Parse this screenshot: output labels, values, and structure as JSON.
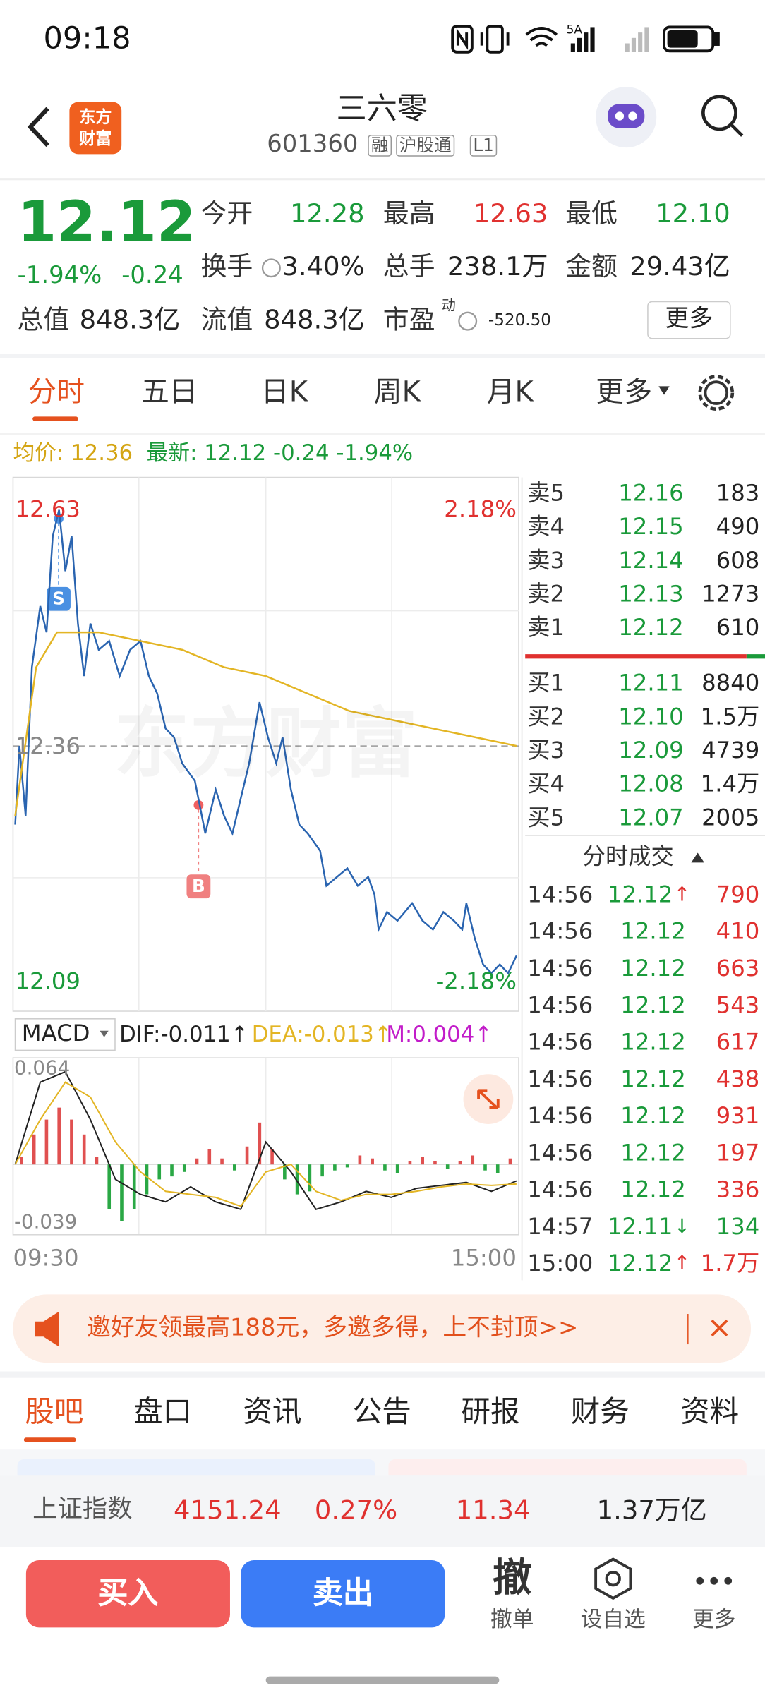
{
  "status_bar": {
    "time": "09:18",
    "network": "5A"
  },
  "header": {
    "logo": [
      "东方",
      "财富"
    ],
    "title": "三六零",
    "code": "601360",
    "tags": [
      "融",
      "沪股通",
      "L1"
    ]
  },
  "quote": {
    "price": "12.12",
    "change_pct": "-1.94%",
    "change": "-0.24",
    "fields": [
      {
        "label": "今开",
        "value": "12.28",
        "color": "#1a9a3a"
      },
      {
        "label": "最高",
        "value": "12.63",
        "color": "#e0312f"
      },
      {
        "label": "最低",
        "value": "12.10",
        "color": "#1a9a3a"
      },
      {
        "label": "换手",
        "value": "3.40%",
        "color": "#222222"
      },
      {
        "label": "总手",
        "value": "238.1万",
        "color": "#222222"
      },
      {
        "label": "金额",
        "value": "29.43亿",
        "color": "#222222"
      },
      {
        "label": "总值",
        "value": "848.3亿",
        "color": "#222222"
      },
      {
        "label": "流值",
        "value": "848.3亿",
        "color": "#222222"
      },
      {
        "label": "市盈",
        "note": "动",
        "value": "-520.50",
        "color": "#222222"
      }
    ],
    "more": "更多"
  },
  "period_tabs": [
    "分时",
    "五日",
    "日K",
    "周K",
    "月K",
    "更多"
  ],
  "info_line": {
    "avg": "均价: 12.36",
    "latest": "最新: 12.12 -0.24 -1.94%"
  },
  "watermark": "东方财富",
  "markers": {
    "sell": "S",
    "buy": "B"
  },
  "chart_data": [
    {
      "type": "line",
      "xlim": [
        0,
        240
      ],
      "xticks": [
        {
          "value": 0,
          "label": "09:30"
        },
        {
          "value": 240,
          "label": "15:00"
        }
      ],
      "ylim": [
        12.09,
        12.63
      ],
      "yticks": [
        12.09,
        12.36,
        12.63
      ],
      "y2lim": [
        -2.18,
        2.18
      ],
      "y2ticks": [
        {
          "value": -2.18,
          "label": "-2.18%"
        },
        {
          "value": 2.18,
          "label": "2.18%"
        }
      ],
      "series": [
        {
          "color": "#2a64b0",
          "x": [
            0,
            2,
            5,
            8,
            12,
            15,
            18,
            21,
            24,
            27,
            30,
            33,
            36,
            40,
            45,
            50,
            55,
            60,
            64,
            68,
            72,
            76,
            80,
            86,
            91,
            96,
            100,
            104,
            108,
            112,
            117,
            121,
            125,
            128,
            132,
            136,
            140,
            143,
            146,
            149,
            154,
            159,
            164,
            169,
            172,
            174,
            178,
            183,
            190,
            195,
            200,
            205,
            210,
            214,
            216,
            220,
            224,
            228,
            232,
            236,
            240
          ],
          "values": [
            12.27,
            12.36,
            12.28,
            12.45,
            12.52,
            12.49,
            12.6,
            12.63,
            12.56,
            12.6,
            12.5,
            12.44,
            12.5,
            12.47,
            12.48,
            12.44,
            12.47,
            12.48,
            12.44,
            12.42,
            12.38,
            12.37,
            12.34,
            12.32,
            12.26,
            12.31,
            12.28,
            12.26,
            12.3,
            12.34,
            12.41,
            12.37,
            12.34,
            12.37,
            12.31,
            12.27,
            12.26,
            12.25,
            12.24,
            12.2,
            12.21,
            12.22,
            12.2,
            12.21,
            12.19,
            12.15,
            12.17,
            12.16,
            12.18,
            12.16,
            12.15,
            12.17,
            12.16,
            12.15,
            12.18,
            12.14,
            12.11,
            12.1,
            12.11,
            12.1,
            12.12
          ]
        },
        {
          "color": "#e3b524",
          "x": [
            0,
            10,
            20,
            40,
            60,
            80,
            100,
            120,
            140,
            160,
            180,
            200,
            220,
            240
          ],
          "values": [
            12.28,
            12.45,
            12.49,
            12.49,
            12.48,
            12.47,
            12.45,
            12.44,
            12.42,
            12.4,
            12.39,
            12.38,
            12.37,
            12.36
          ]
        }
      ]
    },
    {
      "type": "macd",
      "xlim": [
        0,
        240
      ],
      "ylim": [
        -0.039,
        0.064
      ],
      "yticks": [
        -0.039,
        0.064
      ],
      "series": [
        {
          "name": "DIF:-0.011↑",
          "color": "#222222",
          "x": [
            0,
            12,
            24,
            36,
            48,
            60,
            72,
            84,
            96,
            108,
            120,
            132,
            144,
            156,
            168,
            180,
            192,
            204,
            216,
            228,
            240
          ],
          "values": [
            0,
            0.055,
            0.062,
            0.03,
            -0.01,
            -0.02,
            -0.025,
            -0.015,
            -0.025,
            -0.03,
            0.015,
            -0.005,
            -0.03,
            -0.025,
            -0.018,
            -0.022,
            -0.016,
            -0.014,
            -0.012,
            -0.018,
            -0.011
          ]
        },
        {
          "name": "DEA:-0.013↑",
          "color": "#e3b524",
          "x": [
            0,
            12,
            24,
            36,
            48,
            60,
            72,
            84,
            96,
            108,
            120,
            132,
            144,
            156,
            168,
            180,
            192,
            204,
            216,
            228,
            240
          ],
          "values": [
            0,
            0.03,
            0.055,
            0.045,
            0.015,
            -0.005,
            -0.018,
            -0.02,
            -0.022,
            -0.028,
            -0.005,
            0,
            -0.018,
            -0.024,
            -0.02,
            -0.02,
            -0.018,
            -0.015,
            -0.013,
            -0.014,
            -0.013
          ]
        },
        {
          "name": "M:0.004↑",
          "color": "#c21cc9",
          "x": [
            3,
            9,
            15,
            21,
            27,
            33,
            39,
            45,
            51,
            57,
            63,
            69,
            75,
            81,
            87,
            93,
            99,
            105,
            111,
            117,
            123,
            129,
            135,
            141,
            147,
            153,
            159,
            165,
            171,
            177,
            183,
            189,
            195,
            201,
            207,
            213,
            219,
            225,
            231,
            237
          ],
          "values": [
            0.005,
            0.02,
            0.03,
            0.038,
            0.03,
            0.02,
            0.005,
            -0.03,
            -0.038,
            -0.03,
            -0.02,
            -0.01,
            -0.008,
            -0.005,
            0.004,
            0.01,
            0.004,
            -0.004,
            0.012,
            0.028,
            0.01,
            -0.01,
            -0.02,
            -0.018,
            -0.008,
            -0.004,
            -0.002,
            0.006,
            0.004,
            -0.004,
            -0.006,
            0.002,
            0.005,
            0.002,
            -0.003,
            0.002,
            0.006,
            -0.004,
            -0.006,
            0.004
          ]
        }
      ]
    }
  ],
  "indicator": "MACD",
  "order_book": {
    "asks": [
      {
        "label": "卖5",
        "price": "12.16",
        "volume": "183"
      },
      {
        "label": "卖4",
        "price": "12.15",
        "volume": "490"
      },
      {
        "label": "卖3",
        "price": "12.14",
        "volume": "608"
      },
      {
        "label": "卖2",
        "price": "12.13",
        "volume": "1273"
      },
      {
        "label": "卖1",
        "price": "12.12",
        "volume": "610"
      }
    ],
    "bids": [
      {
        "label": "买1",
        "price": "12.11",
        "volume": "8840"
      },
      {
        "label": "买2",
        "price": "12.10",
        "volume": "1.5万"
      },
      {
        "label": "买3",
        "price": "12.09",
        "volume": "4739"
      },
      {
        "label": "买4",
        "price": "12.08",
        "volume": "1.4万"
      },
      {
        "label": "买5",
        "price": "12.07",
        "volume": "2005"
      }
    ]
  },
  "trades": {
    "title": "分时成交",
    "rows": [
      {
        "time": "14:56",
        "price": "12.12",
        "arrow": "↑",
        "volume": "790"
      },
      {
        "time": "14:56",
        "price": "12.12",
        "volume": "410"
      },
      {
        "time": "14:56",
        "price": "12.12",
        "volume": "663"
      },
      {
        "time": "14:56",
        "price": "12.12",
        "volume": "543"
      },
      {
        "time": "14:56",
        "price": "12.12",
        "volume": "617"
      },
      {
        "time": "14:56",
        "price": "12.12",
        "volume": "438"
      },
      {
        "time": "14:56",
        "price": "12.12",
        "volume": "931"
      },
      {
        "time": "14:56",
        "price": "12.12",
        "volume": "197"
      },
      {
        "time": "14:56",
        "price": "12.12",
        "volume": "336"
      },
      {
        "time": "14:57",
        "price": "12.11",
        "arrow": "↓",
        "volume": "134"
      },
      {
        "time": "15:00",
        "price": "12.12",
        "arrow": "↑",
        "volume": "1.7万"
      }
    ]
  },
  "banner": "邀好友领最高188元，多邀多得，上不封顶>>",
  "content_tabs": [
    "股吧",
    "盘口",
    "资讯",
    "公告",
    "研报",
    "财务",
    "资料"
  ],
  "index_bar": {
    "name": "上证指数",
    "value": "4151.24",
    "change_pct": "0.27%",
    "change": "11.34",
    "turnover": "1.37万亿"
  },
  "actions": {
    "buy": "买入",
    "sell": "卖出",
    "cancel_icon": "撤",
    "cancel": "撤单",
    "watchlist": "设自选",
    "more": "更多"
  }
}
